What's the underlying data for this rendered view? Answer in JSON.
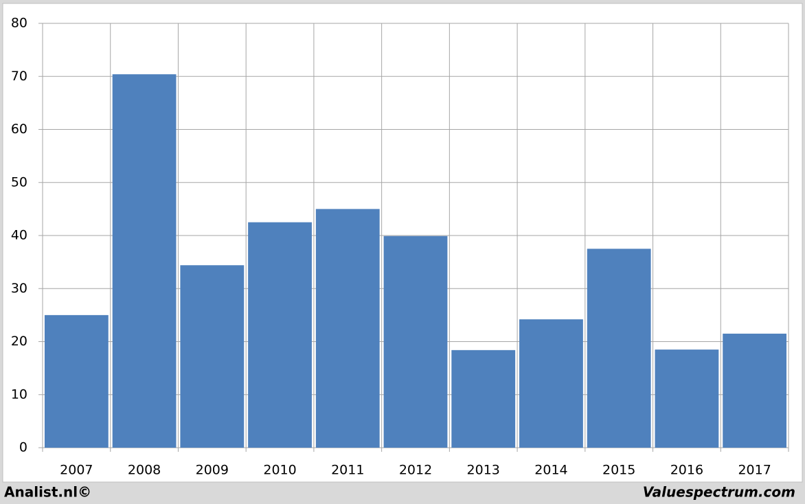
{
  "chart_data": {
    "type": "bar",
    "categories": [
      "2007",
      "2008",
      "2009",
      "2010",
      "2011",
      "2012",
      "2013",
      "2014",
      "2015",
      "2016",
      "2017"
    ],
    "values": [
      25.0,
      70.4,
      34.4,
      42.5,
      45.0,
      39.9,
      18.4,
      24.2,
      37.5,
      18.5,
      21.5
    ],
    "color": "#4f81bd",
    "ylim": [
      0,
      80
    ],
    "yticks": [
      0,
      10,
      20,
      30,
      40,
      50,
      60,
      70,
      80
    ],
    "grid": true,
    "annotations": [
      "Analist.nl©",
      "Valuespectrum.com"
    ]
  }
}
